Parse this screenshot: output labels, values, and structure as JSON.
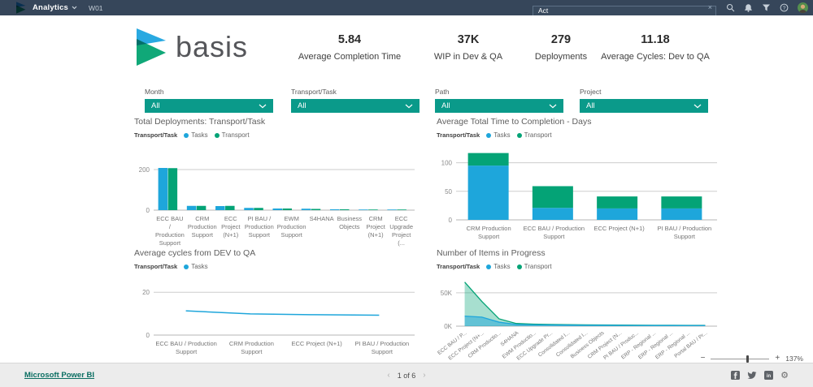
{
  "topbar": {
    "app_name": "Analytics",
    "workspace_tab": "W01",
    "search": {
      "value": "Act",
      "clear_icon": "×"
    },
    "icons": [
      "search-icon",
      "notifications-icon",
      "filter-icon",
      "help-icon",
      "avatar"
    ]
  },
  "brand": {
    "logo_text": "basis"
  },
  "kpis": [
    {
      "value": "5.84",
      "label": "Average Completion Time"
    },
    {
      "value": "37K",
      "label": "WIP in Dev & QA"
    },
    {
      "value": "279",
      "label": "Deployments"
    },
    {
      "value": "11.18",
      "label": "Average Cycles: Dev to QA"
    }
  ],
  "filters": [
    {
      "label": "Month",
      "value": "All"
    },
    {
      "label": "Transport/Task",
      "value": "All"
    },
    {
      "label": "Path",
      "value": "All"
    },
    {
      "label": "Project",
      "value": "All"
    }
  ],
  "colors": {
    "topbar_bg": "#36465a",
    "accent_teal": "#0a9a8a",
    "tasks_blue": "#1ea6db",
    "transport_green": "#04a376",
    "logo_blue": "#29a9e1",
    "logo_green": "#10a878",
    "link_teal": "#0b6e62"
  },
  "chart_data": [
    {
      "type": "bar",
      "title": "Total Deployments: Transport/Task",
      "legend_label": "Transport/Task",
      "legend_position": "top",
      "grid": true,
      "categories": [
        "ECC BAU / Production Support",
        "CRM Production Support",
        "ECC Project (N+1)",
        "PI BAU / Production Support",
        "EWM Production Support",
        "S4HANA",
        "Business Objects",
        "CRM Project (N+1)",
        "ECC Upgrade Project (..."
      ],
      "series": [
        {
          "name": "Tasks",
          "color": "#1ea6db",
          "values": [
            208,
            21,
            20,
            11,
            8,
            7,
            4,
            3,
            3
          ]
        },
        {
          "name": "Transport",
          "color": "#04a376",
          "values": [
            207,
            21,
            21,
            11,
            8,
            6,
            4,
            3,
            3
          ]
        }
      ],
      "yticks": [
        0,
        200
      ],
      "ytick_labels": [
        "0",
        "200"
      ],
      "ylim": [
        0,
        240
      ]
    },
    {
      "type": "stacked-bar",
      "title": "Average Total Time to Completion - Days",
      "legend_label": "Transport/Task",
      "legend_position": "top",
      "grid": true,
      "categories": [
        "CRM Production Support",
        "ECC BAU / Production Support",
        "ECC Project (N+1)",
        "PI BAU / Production Support"
      ],
      "series": [
        {
          "name": "Tasks",
          "color": "#1ea6db",
          "values": [
            95,
            21,
            20,
            20
          ]
        },
        {
          "name": "Transport",
          "color": "#04a376",
          "values": [
            22,
            38,
            21,
            21
          ]
        }
      ],
      "yticks": [
        0,
        50,
        100
      ],
      "ytick_labels": [
        "0",
        "50",
        "100"
      ],
      "ylim": [
        0,
        125
      ]
    },
    {
      "type": "line",
      "title": "Average cycles from DEV to QA",
      "legend_label": "Transport/Task",
      "legend_position": "top",
      "grid": true,
      "categories": [
        "ECC BAU / Production Support",
        "CRM Production Support",
        "ECC Project (N+1)",
        "PI BAU / Production Support"
      ],
      "series": [
        {
          "name": "Tasks",
          "color": "#1ea6db",
          "values": [
            11.3,
            9.9,
            9.5,
            9.3
          ]
        }
      ],
      "yticks": [
        0,
        20
      ],
      "ytick_labels": [
        "0",
        "20"
      ],
      "ylim": [
        0,
        25
      ]
    },
    {
      "type": "area",
      "title": "Number of Items in Progress",
      "legend_label": "Transport/Task",
      "legend_position": "top",
      "grid": true,
      "categories": [
        "ECC BAU / P...",
        "ECC Project (N+...",
        "CRM Productio...",
        "S4HANA",
        "EWM Productio...",
        "ECC Upgrade Pr...",
        "Consolidated I...",
        "Consolidated I...",
        "Business Objects",
        "CRM Project (N...",
        "PI BAU / Produc...",
        "ERP - Regional ...",
        "ERP - Regional ...",
        "ERP - Regional ...",
        "Portal BAU / Pr..."
      ],
      "series": [
        {
          "name": "Tasks",
          "color": "#1ea6db",
          "values": [
            15000,
            13500,
            6000,
            2500,
            2000,
            1800,
            1600,
            1400,
            1300,
            1200,
            1100,
            1000,
            1000,
            900,
            900
          ]
        },
        {
          "name": "Transport",
          "color": "#04a376",
          "values": [
            66000,
            37000,
            11000,
            4000,
            3000,
            2500,
            2200,
            2000,
            1800,
            1600,
            1500,
            1400,
            1300,
            1200,
            1200
          ]
        }
      ],
      "yticks": [
        0,
        50000
      ],
      "ytick_labels": [
        "0K",
        "50K"
      ],
      "ylim": [
        0,
        68000
      ]
    }
  ],
  "footer": {
    "powered_by": "Microsoft Power BI",
    "pagination": {
      "prev": "‹",
      "current": "1 of 6",
      "next": "›"
    },
    "zoom": {
      "minus": "−",
      "plus": "+",
      "level": "137%"
    },
    "social_icons": [
      "facebook-icon",
      "twitter-icon",
      "linkedin-icon",
      "share-embed-icon"
    ]
  }
}
